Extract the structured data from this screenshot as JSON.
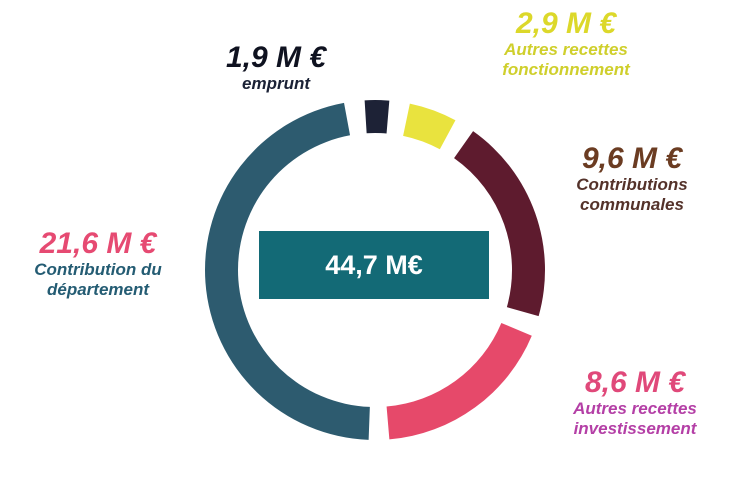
{
  "chart_data": {
    "type": "pie",
    "center_label": "44,7 M€",
    "series": [
      {
        "name": "emprunt",
        "amount_text": "1,9 M €",
        "value": 1.9,
        "color": "#1d2236",
        "text_color": "#0f1220",
        "label_color": "#1b2236"
      },
      {
        "name": "Autres recettes fonctionnement",
        "amount_text": "2,9 M €",
        "value": 2.9,
        "color": "#e9e33e",
        "text_color": "#dcd82a",
        "label_color": "#cfcf2c"
      },
      {
        "name": "Contributions communales",
        "amount_text": "9,6 M €",
        "value": 9.6,
        "color": "#5e1b2e",
        "text_color": "#6b3c22",
        "label_color": "#54322a"
      },
      {
        "name": "Autres recettes investissement",
        "amount_text": "8,6 M €",
        "value": 8.6,
        "color": "#e6496a",
        "text_color": "#e0497a",
        "label_color": "#b43fa6"
      },
      {
        "name": "Contribution du département",
        "amount_text": "21,6 M €",
        "value": 21.6,
        "color": "#2d5b6f",
        "text_color": "#e64a72",
        "label_color": "#245c73"
      }
    ]
  }
}
